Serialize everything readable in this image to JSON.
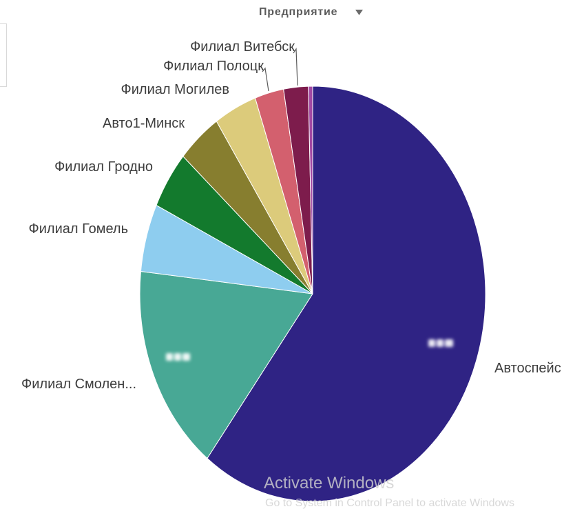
{
  "header": {
    "dimension_label": "Предприятие",
    "dropdown_icon": "caret-down-icon"
  },
  "chart_data": {
    "type": "pie",
    "categories": [
      "Автоспейс",
      "Филиал Смолен...",
      "Филиал Гомель",
      "Филиал Гродно",
      "Авто1-Минск",
      "Филиал Могилев",
      "Филиал Полоцк",
      "Филиал Витебск",
      ""
    ],
    "values": [
      60.5,
      16.3,
      5.3,
      4.5,
      4.1,
      4.0,
      2.7,
      2.3,
      0.4
    ],
    "colors": [
      "#2f2384",
      "#48a895",
      "#8ecdef",
      "#137a2d",
      "#877e2f",
      "#dccb7b",
      "#d3606e",
      "#7d1c4c",
      "#a349a4"
    ],
    "legend": "none"
  },
  "watermark": {
    "title": "Activate Windows",
    "subtitle": "Go to System in Control Panel to activate Windows"
  }
}
